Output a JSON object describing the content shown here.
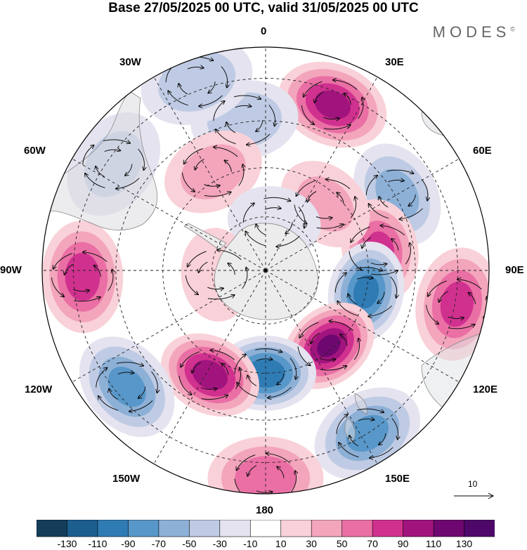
{
  "title": "Base 27/05/2025 00 UTC, valid 31/05/2025 00 UTC",
  "brand": {
    "name": "MODES",
    "mark": "©"
  },
  "longitude_labels": {
    "n0": "0",
    "n30e": "30E",
    "n60e": "60E",
    "n90e": "90E",
    "n120e": "120E",
    "n150e": "150E",
    "n180": "180",
    "n150w": "150W",
    "n120w": "120W",
    "n90w": "90W",
    "n60w": "60W",
    "n30w": "30W"
  },
  "reference_vector": {
    "label": "10"
  },
  "colorbar": {
    "ticks": [
      "-130",
      "-110",
      "-90",
      "-70",
      "-50",
      "-30",
      "-10",
      "10",
      "30",
      "50",
      "70",
      "90",
      "110",
      "130"
    ],
    "colors": [
      "#143d59",
      "#1c5f8f",
      "#2f7bb4",
      "#5897c9",
      "#8db0d7",
      "#bfcbe4",
      "#e4e3ef",
      "#ffffff",
      "#f9d1d8",
      "#f3a5bc",
      "#ea6fa4",
      "#d0318f",
      "#a1147e",
      "#6e0870",
      "#4e086a"
    ]
  },
  "map": {
    "projection": "south polar stereographic",
    "anomalies": [
      {
        "lon": 22,
        "r": 0.8,
        "value": 95
      },
      {
        "lon": 60,
        "r": 0.68,
        "value": -55
      },
      {
        "lon": 80,
        "r": 0.52,
        "value": 70
      },
      {
        "lon": 102,
        "r": 0.46,
        "value": -95
      },
      {
        "lon": 100,
        "r": 0.87,
        "value": 75
      },
      {
        "lon": 140,
        "r": 0.44,
        "value": 110
      },
      {
        "lon": 148,
        "r": 0.86,
        "value": -75
      },
      {
        "lon": 180,
        "r": 0.46,
        "value": -105
      },
      {
        "lon": 180,
        "r": 0.93,
        "value": 60
      },
      {
        "lon": -152,
        "r": 0.53,
        "value": 100
      },
      {
        "lon": -130,
        "r": 0.81,
        "value": -75
      },
      {
        "lon": -92,
        "r": 0.82,
        "value": 80
      },
      {
        "lon": -55,
        "r": 0.83,
        "value": -30
      },
      {
        "lon": -8,
        "r": 0.68,
        "value": -40
      },
      {
        "lon": -28,
        "r": 0.5,
        "value": 35
      },
      {
        "lon": 42,
        "r": 0.4,
        "value": 30
      },
      {
        "lon": 10,
        "r": 0.22,
        "value": -20
      },
      {
        "lon": -95,
        "r": 0.22,
        "value": 15
      },
      {
        "lon": -20,
        "r": 0.9,
        "value": -40
      }
    ]
  }
}
